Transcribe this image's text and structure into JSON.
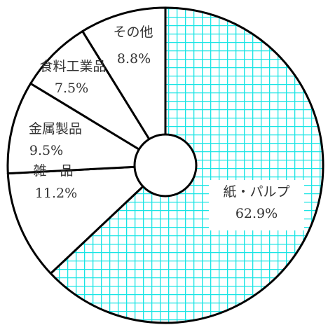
{
  "chart_data": {
    "type": "pie",
    "style": "donut",
    "slices": [
      {
        "name": "紙・パルプ",
        "value_label": "62.9%",
        "value": 62.9,
        "pattern": "grid",
        "pattern_color": "#19e5e5"
      },
      {
        "name": "雑　品",
        "value_label": "11.2%",
        "value": 11.2,
        "pattern": "none"
      },
      {
        "name": "金属製品",
        "value_label": "9.5%",
        "value": 9.5,
        "pattern": "none"
      },
      {
        "name": "食料工業品",
        "value_label": "7.5%",
        "value": 7.5,
        "pattern": "none"
      },
      {
        "name": "その他",
        "value_label": "8.8%",
        "value": 8.8,
        "pattern": "none"
      }
    ],
    "start": "top",
    "direction": "clockwise",
    "legend": "none"
  }
}
